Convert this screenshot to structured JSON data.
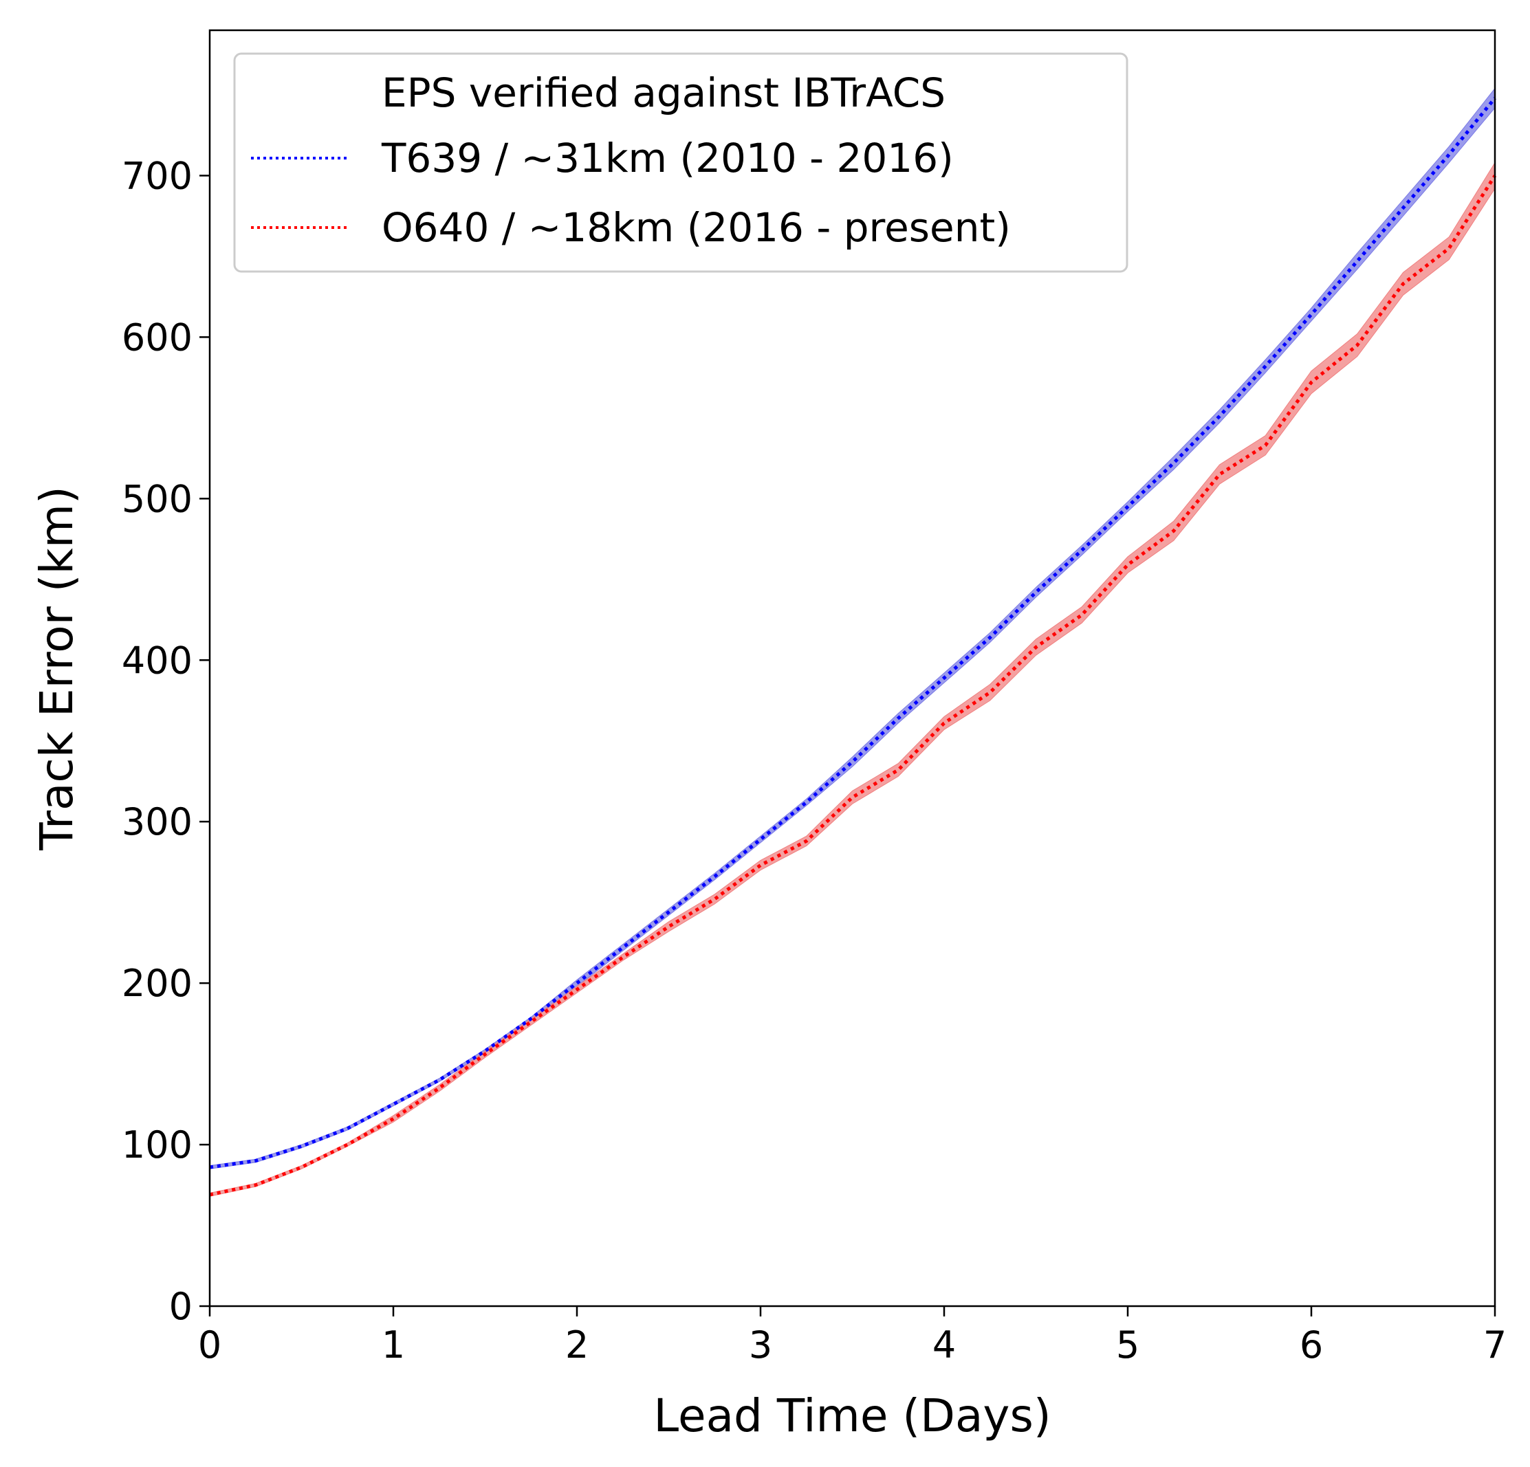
{
  "chart_data": {
    "type": "line",
    "title": "",
    "xlabel": "Lead Time (Days)",
    "ylabel": "Track Error (km)",
    "xlim": [
      0,
      7
    ],
    "ylim": [
      0,
      790
    ],
    "xticks": [
      0,
      1,
      2,
      3,
      4,
      5,
      6,
      7
    ],
    "yticks": [
      0,
      100,
      200,
      300,
      400,
      500,
      600,
      700
    ],
    "grid": false,
    "legend": {
      "placement": "upper-left",
      "title": "EPS verified against IBTrACS"
    },
    "series": [
      {
        "name": "T639 / ~31km (2010 - 2016)",
        "color": "#0000ff",
        "band_color": "#7a7ae6",
        "line_style": "dotted",
        "x": [
          0,
          0.25,
          0.5,
          0.75,
          1,
          1.25,
          1.5,
          1.75,
          2,
          2.25,
          2.5,
          2.75,
          3,
          3.25,
          3.5,
          3.75,
          4,
          4.25,
          4.5,
          4.75,
          5,
          5.25,
          5.5,
          5.75,
          6,
          6.25,
          6.5,
          6.75,
          7
        ],
        "y": [
          86,
          90,
          99,
          110,
          125,
          140,
          158,
          178,
          200,
          222,
          244,
          266,
          289,
          312,
          337,
          364,
          389,
          414,
          442,
          468,
          495,
          522,
          551,
          582,
          614,
          647,
          680,
          713,
          748
        ],
        "band_halfwidth": [
          1,
          1,
          1,
          1,
          1,
          1,
          1,
          1,
          2,
          2,
          2,
          2,
          2,
          2,
          3,
          3,
          3,
          3,
          3,
          3,
          3,
          4,
          4,
          4,
          4,
          5,
          5,
          5,
          6
        ]
      },
      {
        "name": "O640 / ~18km (2016 - present)",
        "color": "#ff0000",
        "band_color": "#f08080",
        "line_style": "dotted",
        "x": [
          0,
          0.25,
          0.5,
          0.75,
          1,
          1.25,
          1.5,
          1.75,
          2,
          2.25,
          2.5,
          2.75,
          3,
          3.25,
          3.5,
          3.75,
          4,
          4.25,
          4.5,
          4.75,
          5,
          5.25,
          5.5,
          5.75,
          6,
          6.25,
          6.5,
          6.75,
          7
        ],
        "y": [
          69,
          75,
          86,
          100,
          116,
          135,
          156,
          176,
          196,
          216,
          235,
          252,
          273,
          288,
          315,
          332,
          361,
          380,
          408,
          428,
          459,
          480,
          515,
          533,
          572,
          595,
          633,
          655,
          700
        ],
        "band_halfwidth": [
          1,
          1,
          1,
          1,
          2,
          2,
          2,
          2,
          2,
          2,
          3,
          3,
          3,
          3,
          4,
          4,
          4,
          5,
          5,
          5,
          5,
          6,
          6,
          6,
          7,
          7,
          7,
          7,
          8
        ]
      }
    ]
  }
}
